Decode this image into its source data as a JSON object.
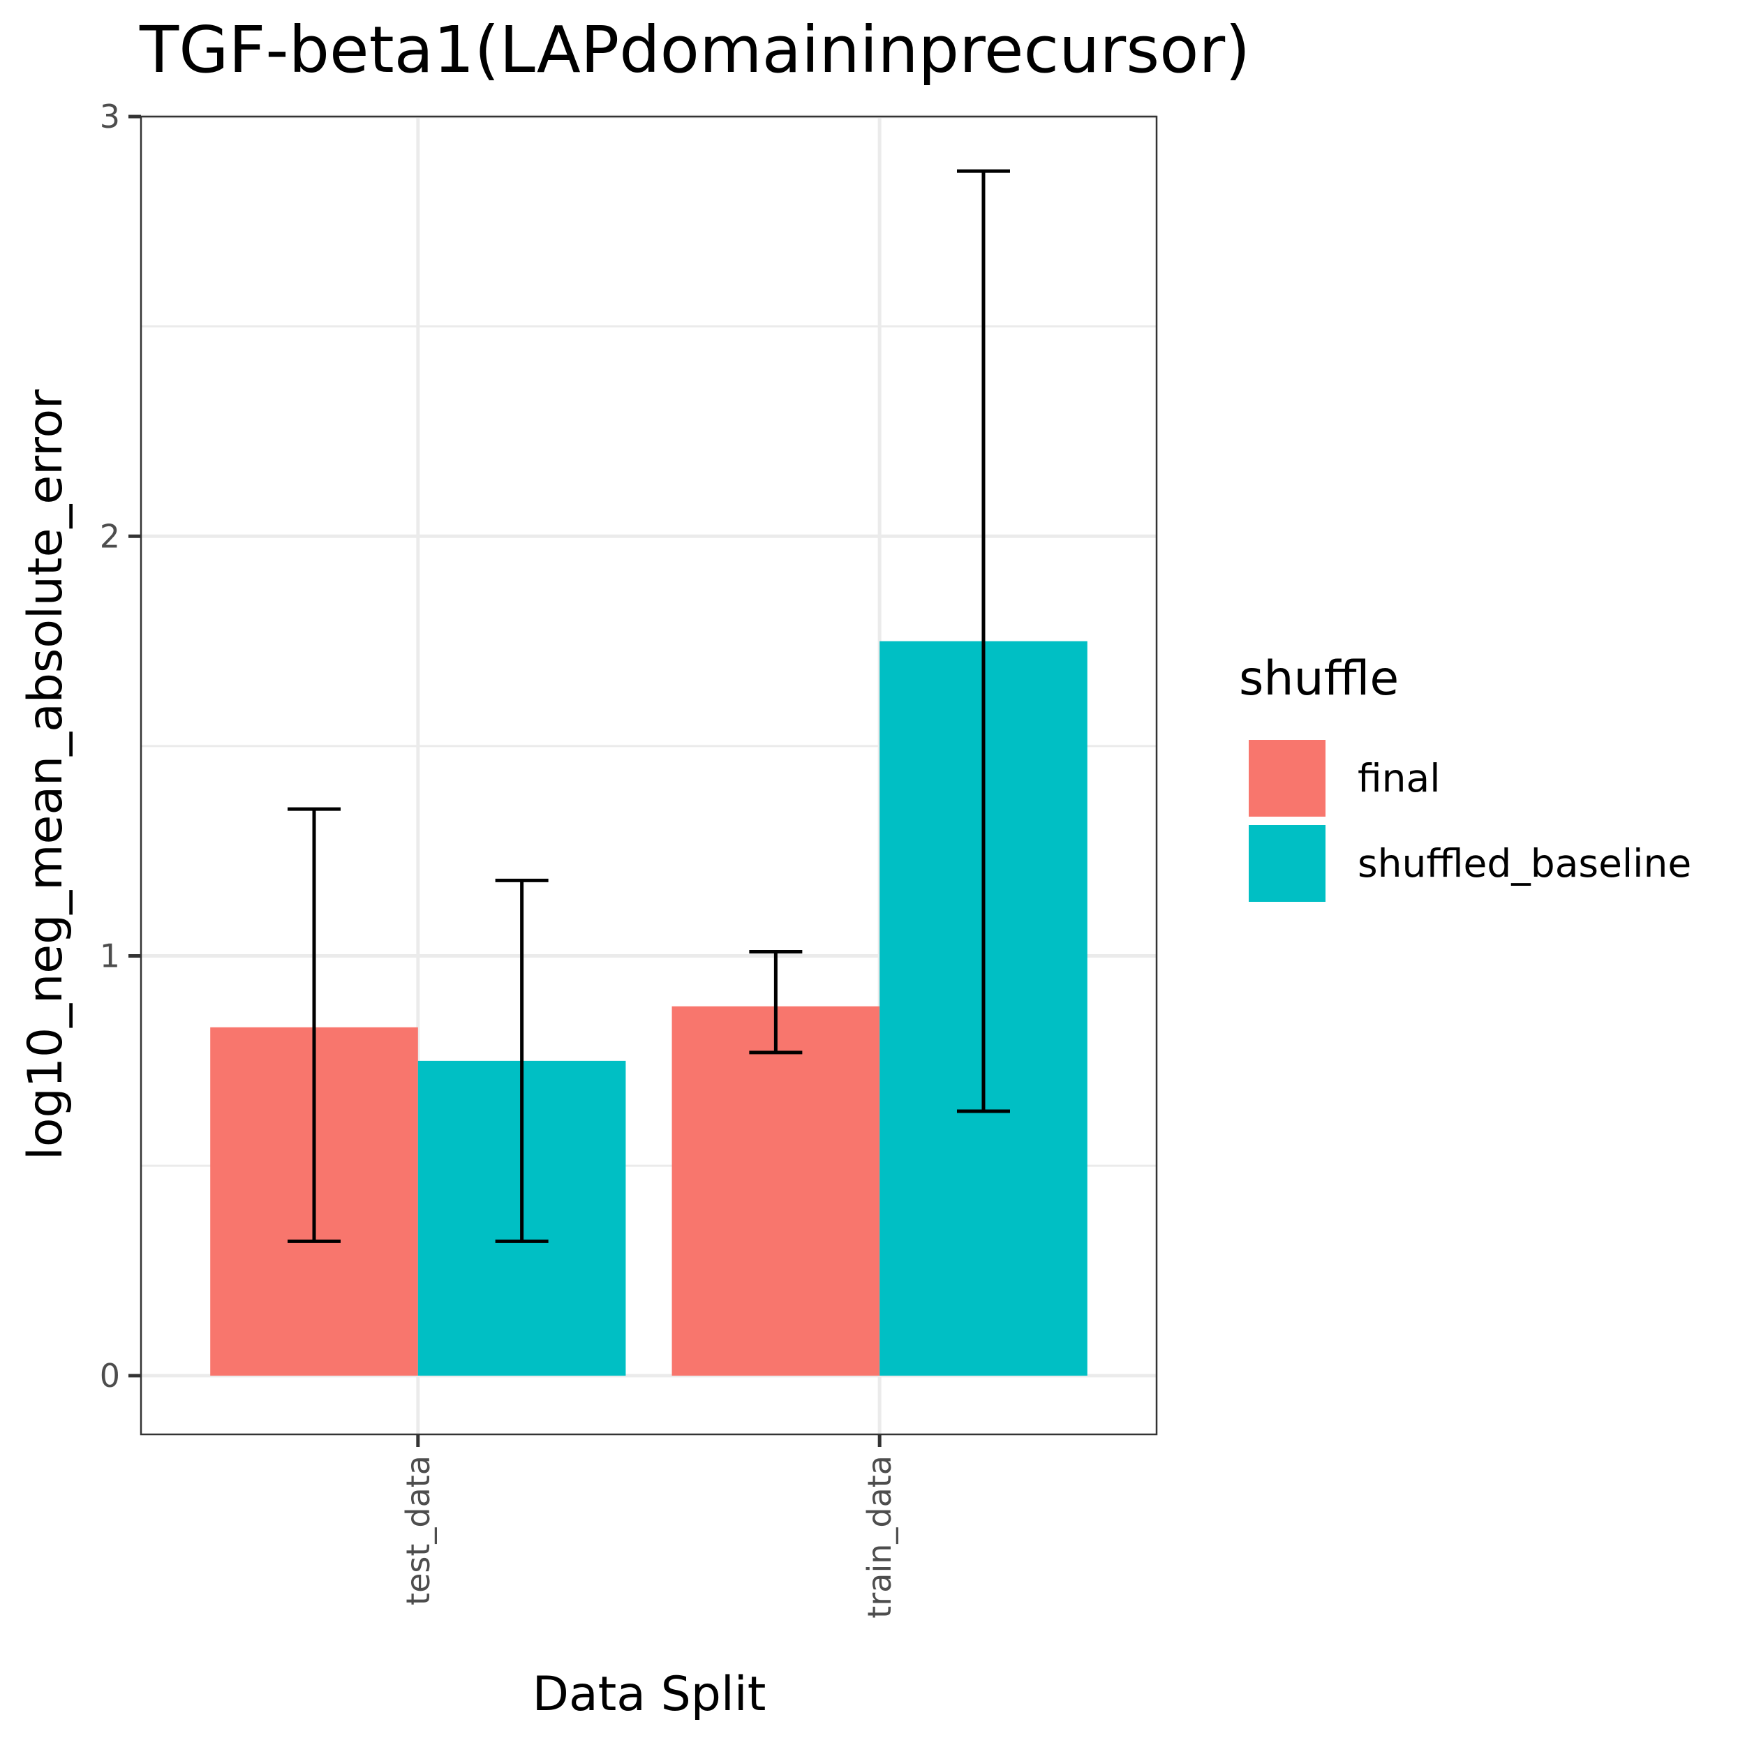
{
  "chart_data": {
    "type": "bar",
    "title": "TGF-beta1(LAPdomaininprecursor)",
    "xlabel": "Data Split",
    "ylabel": "log10_neg_mean_absolute_error",
    "categories": [
      "test_data",
      "train_data"
    ],
    "ylim": [
      -0.14,
      3.0
    ],
    "yticks": [
      "0",
      "1",
      "2",
      "3"
    ],
    "grid": true,
    "legend": {
      "title": "shuffle",
      "position": "right"
    },
    "series": [
      {
        "name": "final",
        "color": "#F8766D",
        "values": [
          0.83,
          0.88
        ],
        "error_low": [
          0.32,
          0.77
        ],
        "error_high": [
          1.35,
          1.01
        ]
      },
      {
        "name": "shuffled_baseline",
        "color": "#00BFC4",
        "values": [
          0.75,
          1.75
        ],
        "error_low": [
          0.32,
          0.63
        ],
        "error_high": [
          1.18,
          2.87
        ]
      }
    ]
  }
}
